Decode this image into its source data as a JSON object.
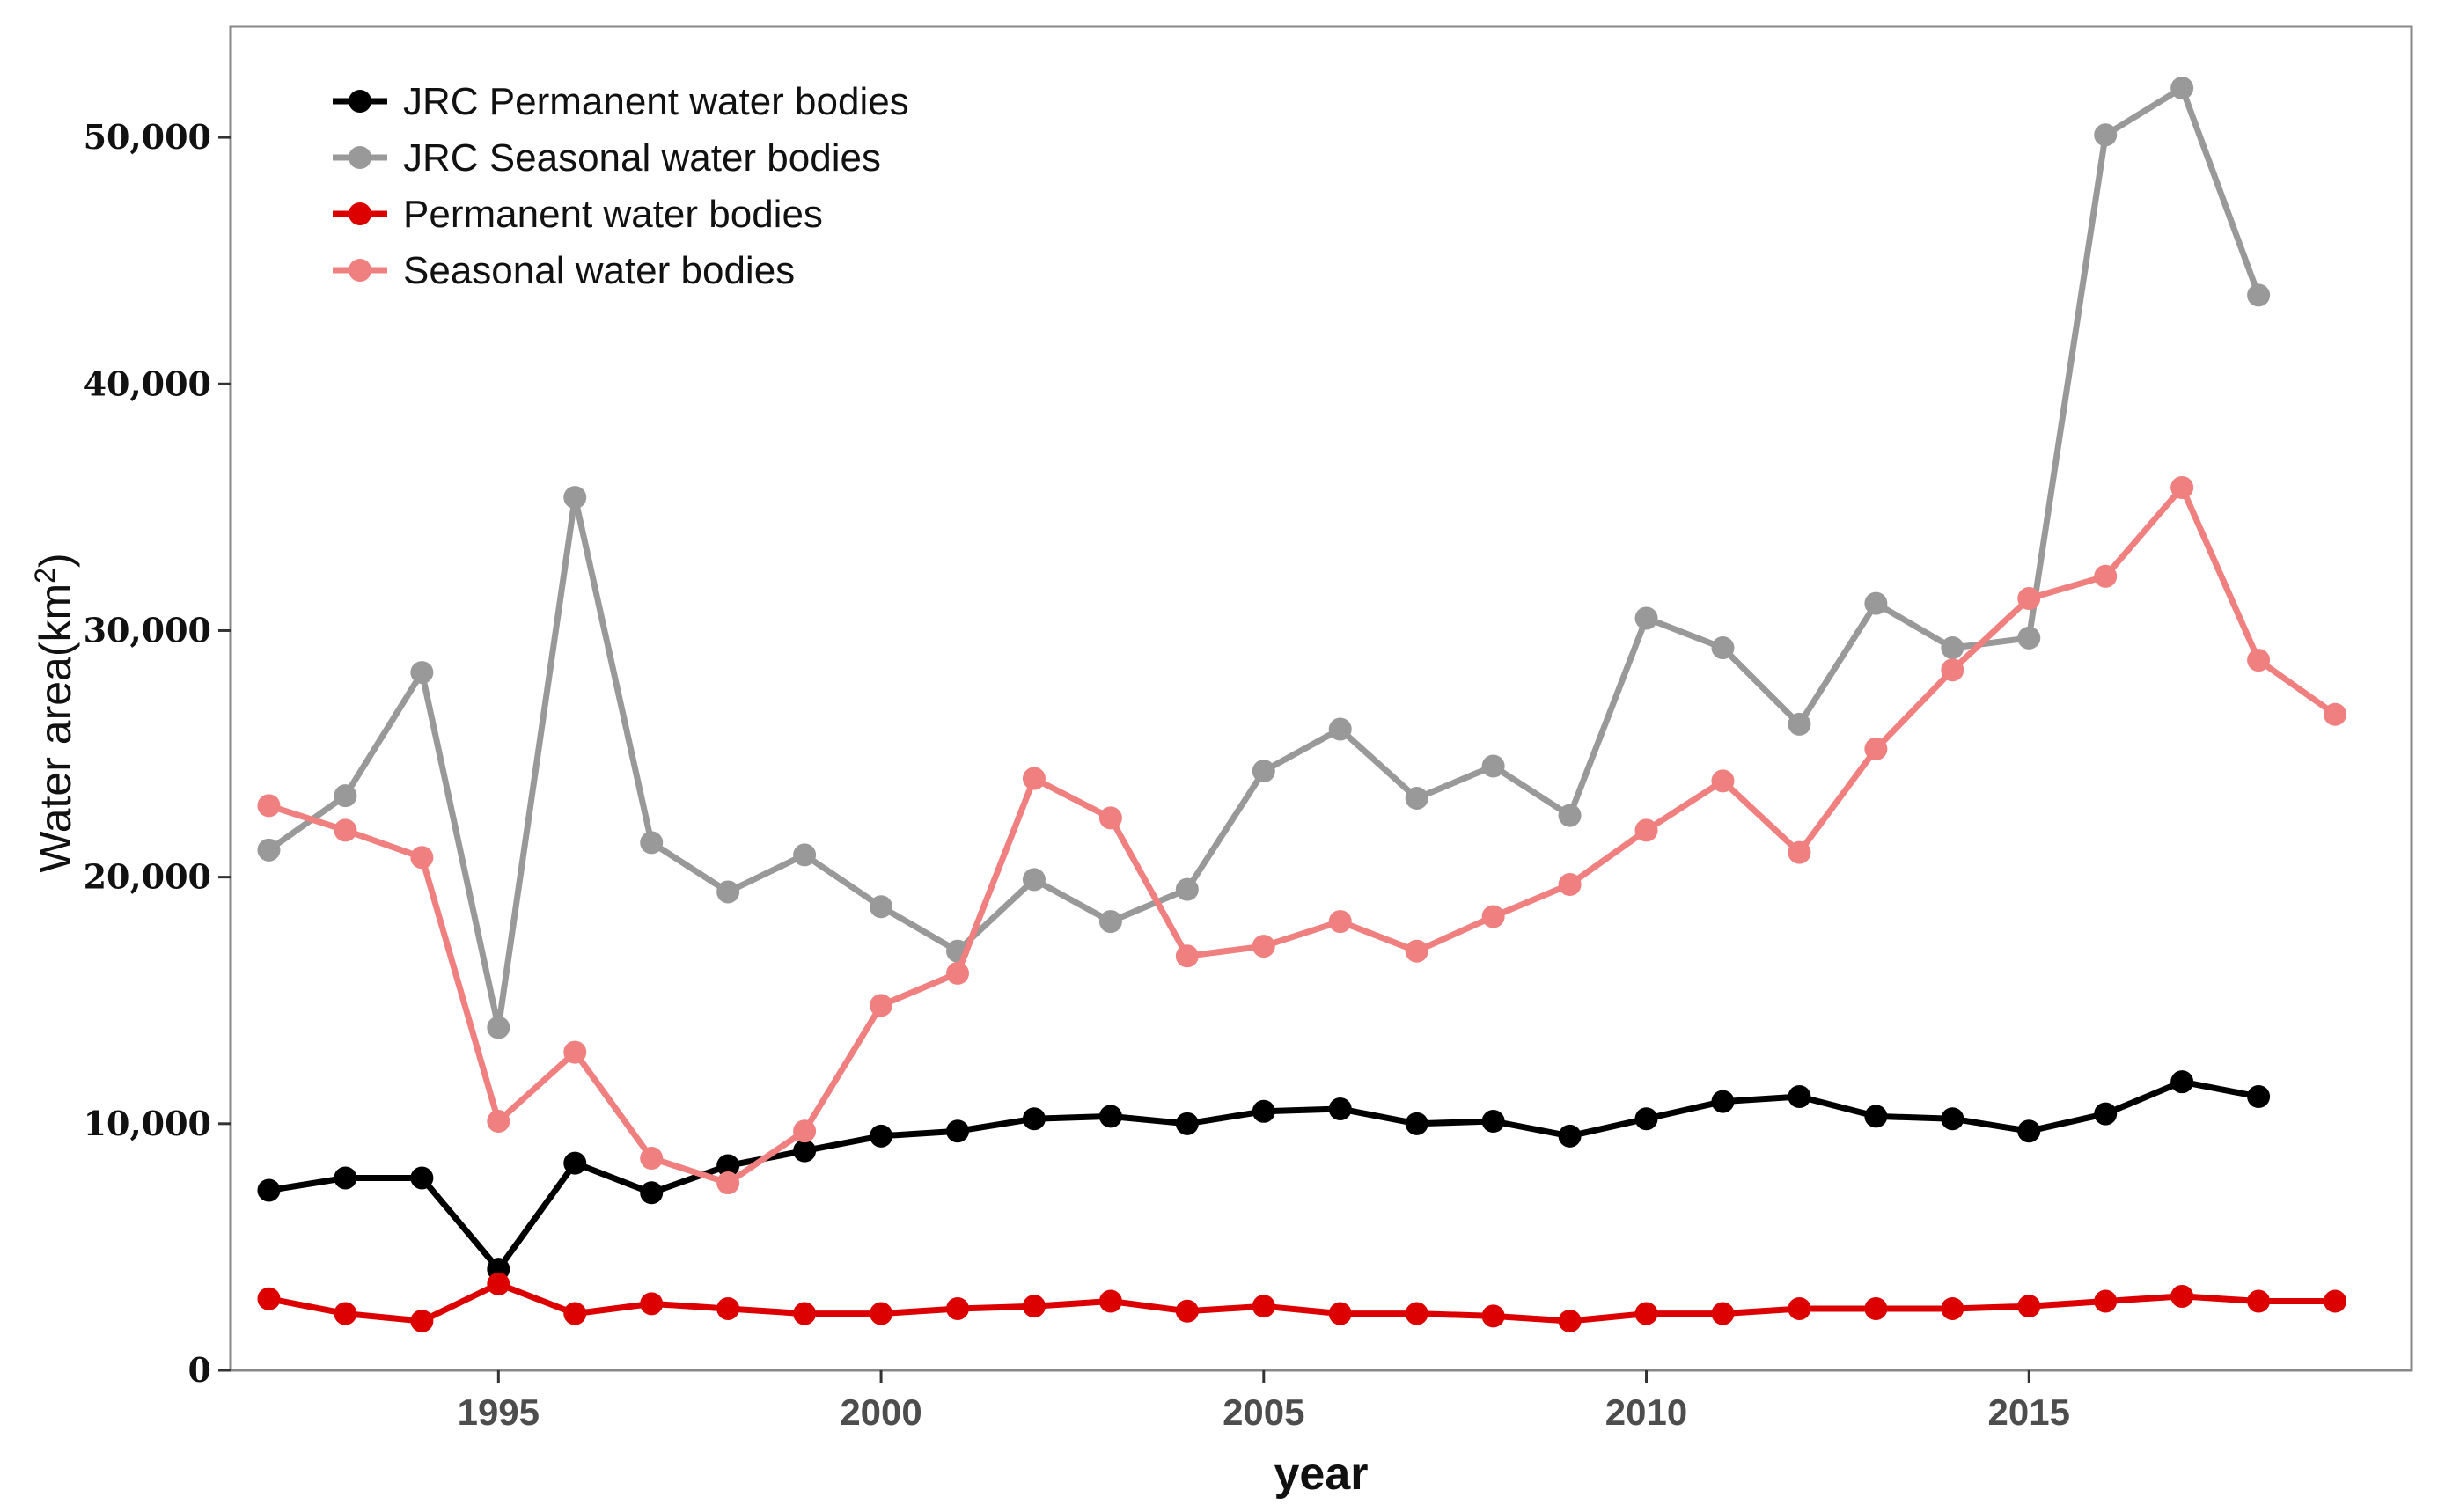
{
  "chart_data": {
    "type": "line",
    "title": "",
    "xlabel": "year",
    "ylabel_main": "Water area(km",
    "ylabel_sup": "2",
    "ylabel_close": ")",
    "xlim": [
      1991.5,
      2020
    ],
    "ylim": [
      0,
      54500
    ],
    "x_ticks": [
      1995,
      2000,
      2005,
      2010,
      2015
    ],
    "x_tick_labels": [
      "1995",
      "2000",
      "2005",
      "2010",
      "2015"
    ],
    "y_ticks": [
      0,
      10000,
      20000,
      30000,
      40000,
      50000
    ],
    "y_tick_labels": [
      "0",
      "10,000",
      "20,000",
      "30,000",
      "40,000",
      "50,000"
    ],
    "grid": false,
    "legend_position": "top-left",
    "series": [
      {
        "name": "JRC Permanent water bodies",
        "color": "#000000",
        "x": [
          1992,
          1993,
          1994,
          1995,
          1996,
          1997,
          1998,
          1999,
          2000,
          2001,
          2002,
          2003,
          2004,
          2005,
          2006,
          2007,
          2008,
          2009,
          2010,
          2011,
          2012,
          2013,
          2014,
          2015,
          2016,
          2017,
          2018
        ],
        "y": [
          7300,
          7800,
          7800,
          4100,
          8400,
          7200,
          8300,
          8900,
          9500,
          9700,
          10200,
          10300,
          10000,
          10500,
          10600,
          10000,
          10100,
          9500,
          10200,
          10900,
          11100,
          10300,
          10200,
          9700,
          10400,
          11700,
          11100
        ]
      },
      {
        "name": "JRC Seasonal water bodies",
        "color": "#999999",
        "x": [
          1992,
          1993,
          1994,
          1995,
          1996,
          1997,
          1998,
          1999,
          2000,
          2001,
          2002,
          2003,
          2004,
          2005,
          2006,
          2007,
          2008,
          2009,
          2010,
          2011,
          2012,
          2013,
          2014,
          2015,
          2016,
          2017,
          2018
        ],
        "y": [
          21100,
          23300,
          28300,
          13900,
          35400,
          21400,
          19400,
          20900,
          18800,
          17000,
          19900,
          18200,
          19500,
          24300,
          26000,
          23200,
          24500,
          22500,
          30500,
          29300,
          26200,
          31100,
          29300,
          29700,
          50100,
          52000,
          43600
        ]
      },
      {
        "name": "Permanent water bodies",
        "color": "#dd0000",
        "x": [
          1992,
          1993,
          1994,
          1995,
          1996,
          1997,
          1998,
          1999,
          2000,
          2001,
          2002,
          2003,
          2004,
          2005,
          2006,
          2007,
          2008,
          2009,
          2010,
          2011,
          2012,
          2013,
          2014,
          2015,
          2016,
          2017,
          2018,
          2019
        ],
        "y": [
          2900,
          2300,
          2000,
          3500,
          2300,
          2700,
          2500,
          2300,
          2300,
          2500,
          2600,
          2800,
          2400,
          2600,
          2300,
          2300,
          2200,
          2000,
          2300,
          2300,
          2500,
          2500,
          2500,
          2600,
          2800,
          3000,
          2800,
          2800
        ]
      },
      {
        "name": "Seasonal water bodies",
        "color": "#f07f7f",
        "x": [
          1992,
          1993,
          1994,
          1995,
          1996,
          1997,
          1998,
          1999,
          2000,
          2001,
          2002,
          2003,
          2004,
          2005,
          2006,
          2007,
          2008,
          2009,
          2010,
          2011,
          2012,
          2013,
          2014,
          2015,
          2016,
          2017,
          2018,
          2019
        ],
        "y": [
          22900,
          21900,
          20800,
          10100,
          12900,
          8600,
          7600,
          9700,
          14800,
          16100,
          24000,
          22400,
          16800,
          17200,
          18200,
          17000,
          18400,
          19700,
          21900,
          23900,
          21000,
          25200,
          28400,
          31300,
          32200,
          35800,
          28800,
          26600
        ]
      }
    ]
  }
}
